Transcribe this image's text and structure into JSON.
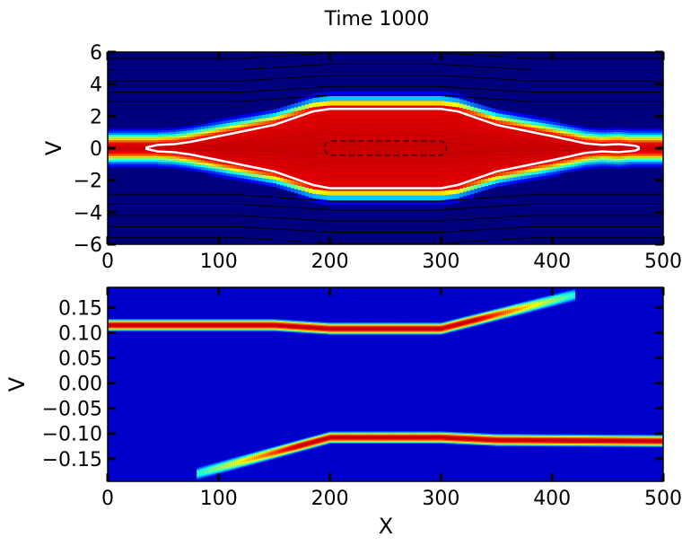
{
  "figure": {
    "title": "Time 1000"
  },
  "chart_data": [
    {
      "type": "heatmap",
      "panel": "top",
      "xlabel": "",
      "ylabel": "V",
      "xlim": [
        0,
        500
      ],
      "ylim": [
        -6,
        6
      ],
      "xticks": [
        0,
        100,
        200,
        300,
        400,
        500
      ],
      "yticks": [
        -6,
        -4,
        -2,
        0,
        2,
        4,
        6
      ],
      "colormap": "jet",
      "background_color": "#00007f",
      "core_color": "#ff2a00",
      "separatrix": {
        "color": "#ffffff",
        "upper": [
          [
            35,
            0.05
          ],
          [
            45,
            0.2
          ],
          [
            60,
            0.25
          ],
          [
            75,
            0.4
          ],
          [
            100,
            0.75
          ],
          [
            150,
            1.45
          ],
          [
            185,
            2.3
          ],
          [
            200,
            2.45
          ],
          [
            300,
            2.45
          ],
          [
            315,
            2.3
          ],
          [
            350,
            1.45
          ],
          [
            400,
            0.75
          ],
          [
            430,
            0.3
          ],
          [
            445,
            0.2
          ],
          [
            460,
            0.25
          ],
          [
            475,
            0.15
          ],
          [
            478,
            0.05
          ]
        ],
        "lower": [
          [
            35,
            -0.05
          ],
          [
            45,
            -0.2
          ],
          [
            60,
            -0.25
          ],
          [
            75,
            -0.4
          ],
          [
            100,
            -0.75
          ],
          [
            150,
            -1.45
          ],
          [
            185,
            -2.3
          ],
          [
            200,
            -2.5
          ],
          [
            300,
            -2.5
          ],
          [
            315,
            -2.3
          ],
          [
            350,
            -1.45
          ],
          [
            400,
            -0.75
          ],
          [
            430,
            -0.3
          ],
          [
            445,
            -0.2
          ],
          [
            460,
            -0.25
          ],
          [
            475,
            -0.15
          ],
          [
            478,
            -0.05
          ]
        ]
      },
      "dashed_loop": {
        "x": [
          195,
          305
        ],
        "y": [
          -0.45,
          0.45
        ]
      },
      "streamlines_v": [
        5.6,
        4.9,
        4.2,
        3.5,
        2.9,
        -2.9,
        -3.5,
        -4.2,
        -4.9,
        -5.6
      ]
    },
    {
      "type": "heatmap",
      "panel": "bottom",
      "xlabel": "X",
      "ylabel": "V",
      "xlim": [
        0,
        500
      ],
      "ylim": [
        -0.195,
        0.19
      ],
      "xticks": [
        0,
        100,
        200,
        300,
        400,
        500
      ],
      "yticks": [
        -0.15,
        -0.1,
        -0.05,
        0.0,
        0.05,
        0.1,
        0.15
      ],
      "ytick_labels": [
        "−0.15",
        "−0.10",
        "−0.05",
        "0.00",
        "0.05",
        "0.10",
        "0.15"
      ],
      "colormap": "jet",
      "background_color": "#0000cc",
      "upper_band": [
        [
          0,
          0.115
        ],
        [
          150,
          0.115
        ],
        [
          200,
          0.108
        ],
        [
          300,
          0.108
        ],
        [
          420,
          0.175
        ]
      ],
      "lower_band": [
        [
          80,
          -0.18
        ],
        [
          200,
          -0.108
        ],
        [
          300,
          -0.108
        ],
        [
          350,
          -0.113
        ],
        [
          500,
          -0.115
        ]
      ],
      "band_halfwidth": 0.012
    }
  ]
}
